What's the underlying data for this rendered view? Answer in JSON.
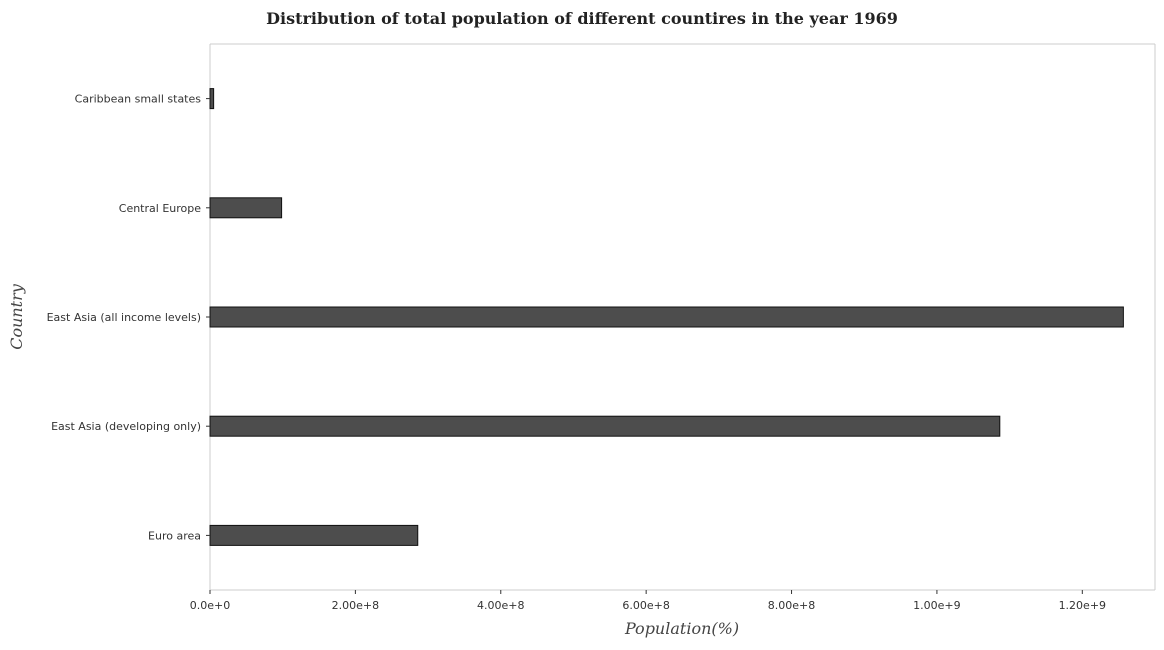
{
  "chart_data": {
    "type": "bar",
    "orientation": "horizontal",
    "title": "Distribution of total population of different countires in the year 1969",
    "xlabel": "Population(%)",
    "ylabel": "Country",
    "categories": [
      "Caribbean small states",
      "Central Europe",
      "East Asia (all income levels)",
      "East Asia (developing only)",
      "Euro area"
    ],
    "values": [
      5000000,
      98500000,
      1256500000,
      1086500000,
      285800000
    ],
    "xlim": [
      0,
      1300000000
    ],
    "xticks": [
      0,
      200000000,
      400000000,
      600000000,
      800000000,
      1000000000,
      1200000000
    ],
    "xtick_labels": [
      "0.0e+0",
      "2.00e+8",
      "4.00e+8",
      "6.00e+8",
      "8.00e+8",
      "1.00e+9",
      "1.20e+9"
    ],
    "grid": false,
    "bar_color": "#4d4d4d"
  }
}
